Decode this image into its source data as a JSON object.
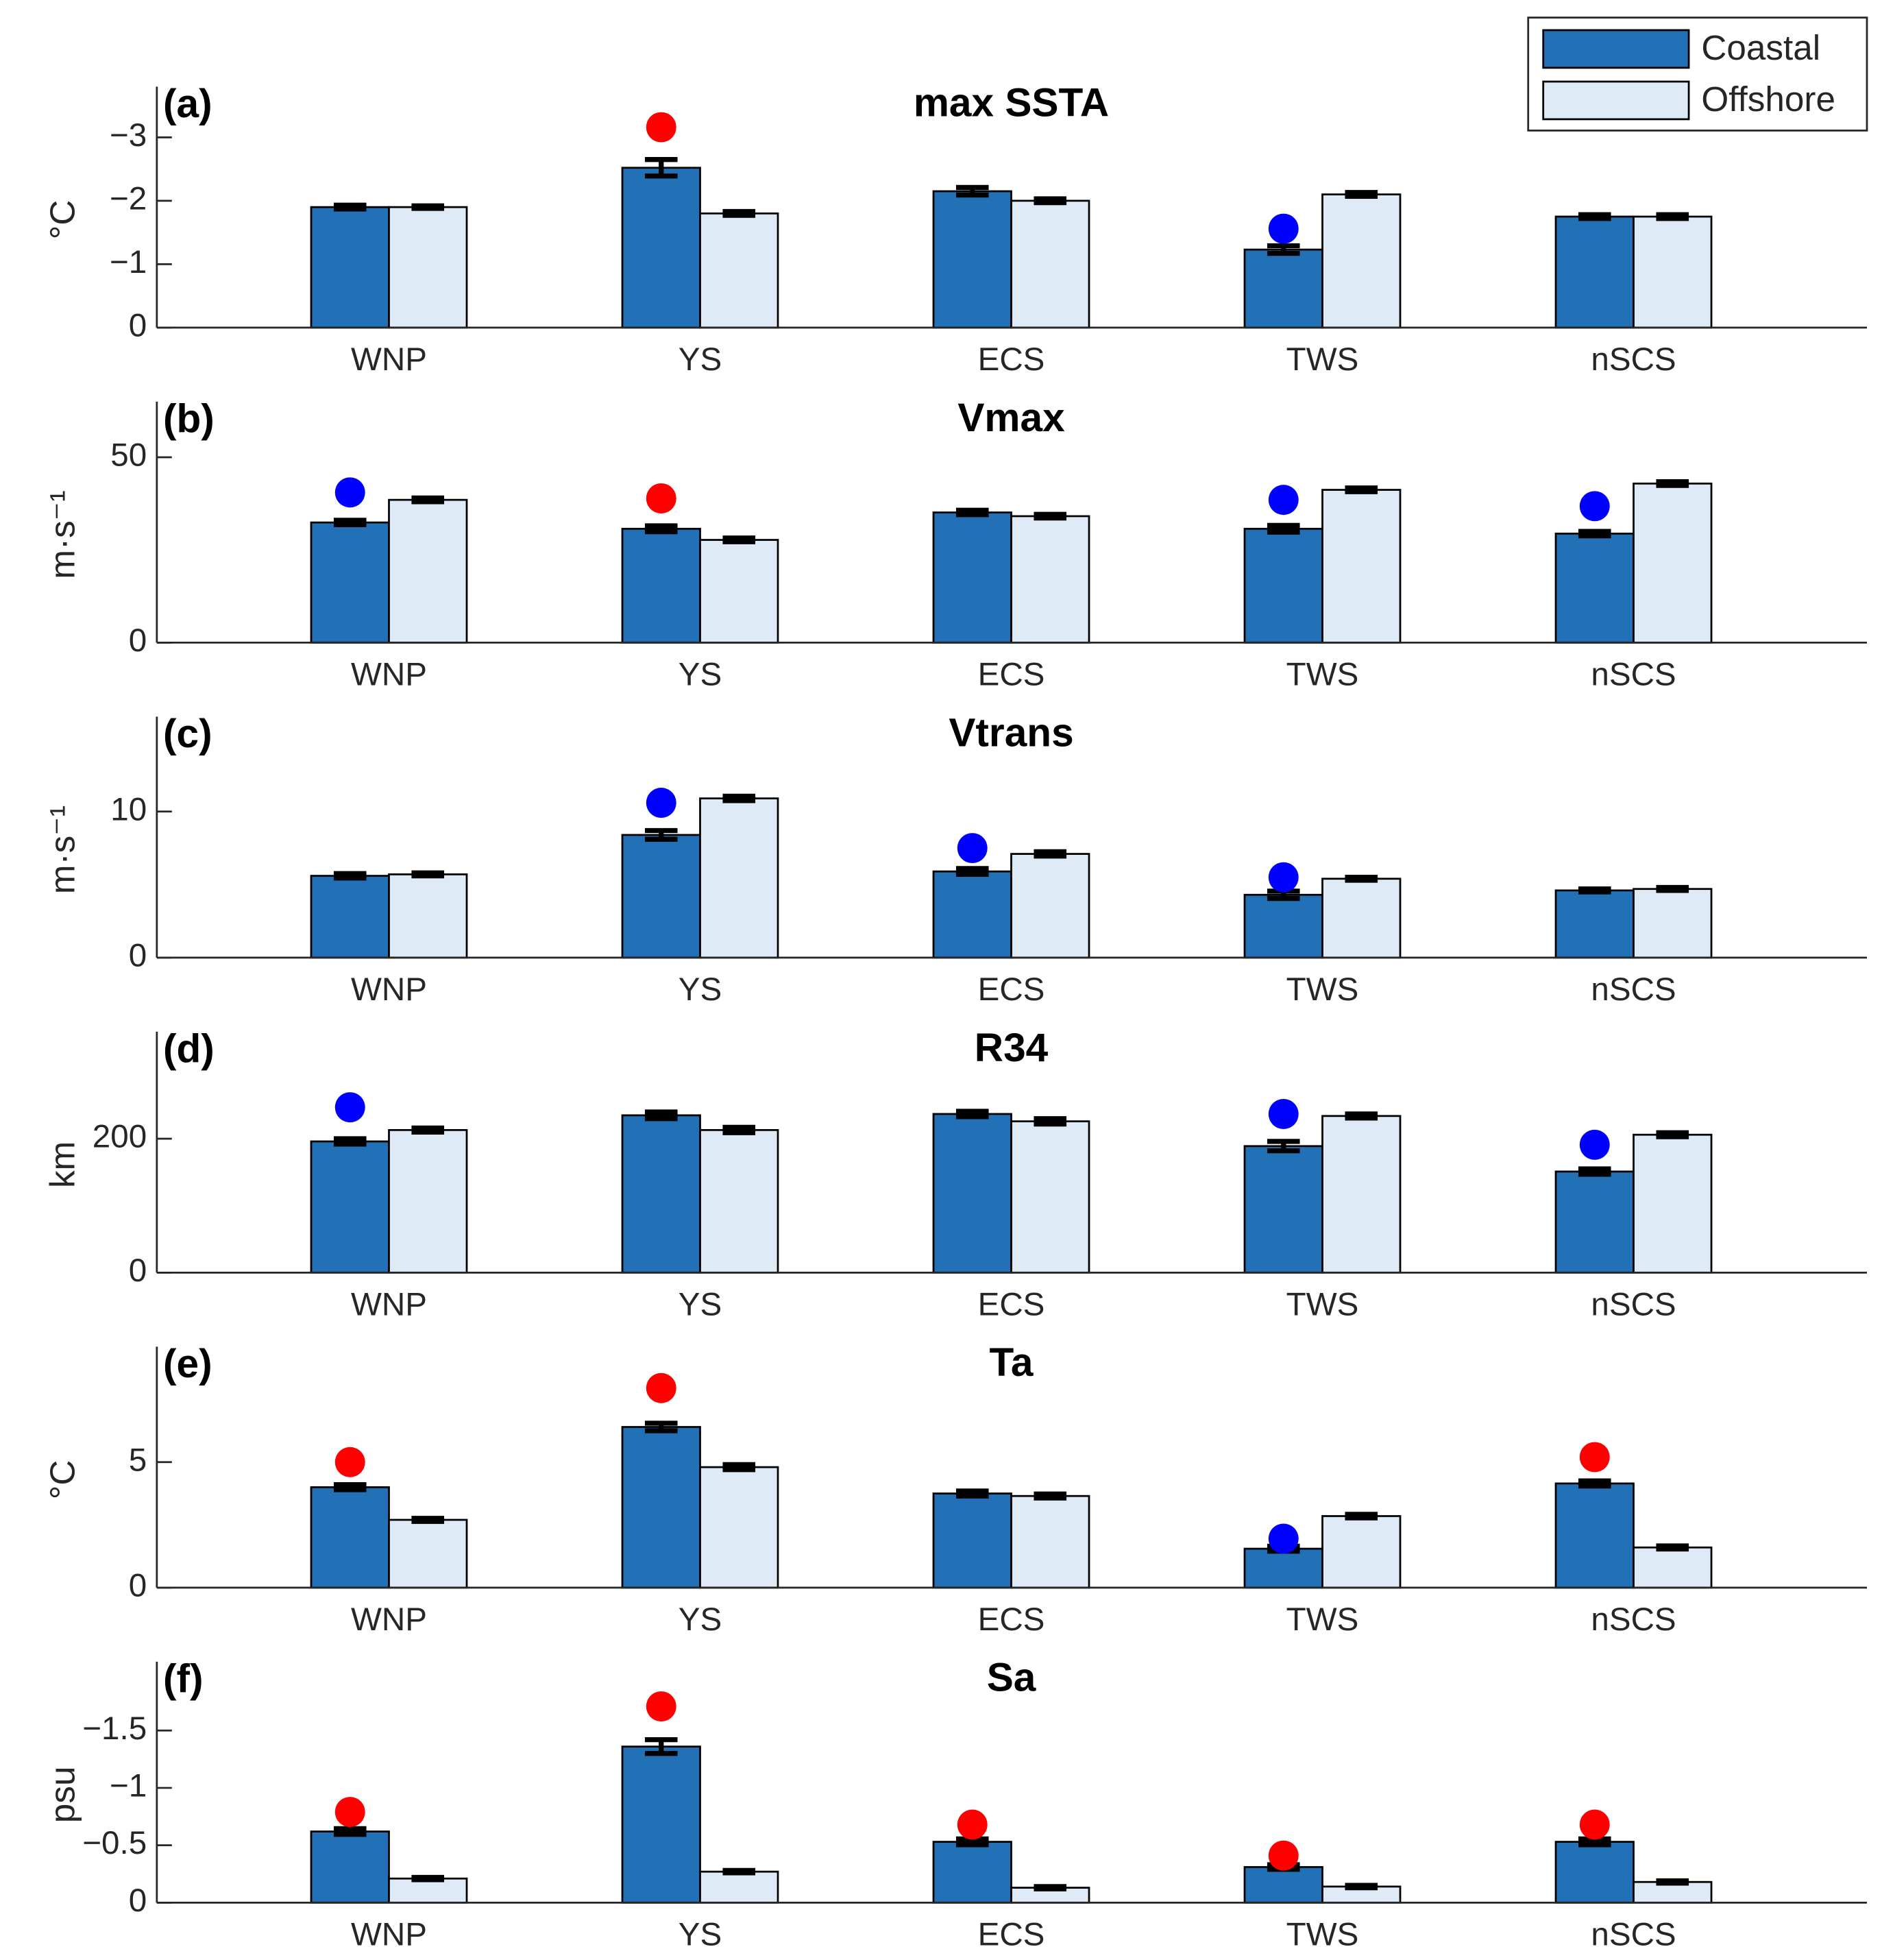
{
  "chart_data": [
    {
      "type": "bar",
      "title": "max SSTA",
      "panel_label": "(a)",
      "ylabel": "°C",
      "categories": [
        "WNP",
        "YS",
        "ECS",
        "TWS",
        "nSCS"
      ],
      "series": [
        {
          "name": "Coastal",
          "color": "#2270b5",
          "values": [
            -1.9,
            -2.52,
            -2.15,
            -1.23,
            -1.75
          ],
          "errors": [
            0.03,
            0.13,
            0.06,
            0.06,
            0.03
          ]
        },
        {
          "name": "Offshore",
          "color": "#deebf7",
          "values": [
            -1.9,
            -1.8,
            -2.0,
            -2.1,
            -1.75
          ],
          "errors": [
            0.02,
            0.03,
            0.03,
            0.03,
            0.03
          ]
        }
      ],
      "markers": {
        "values": [
          null,
          -3.16,
          null,
          -1.56,
          null
        ],
        "colors": [
          null,
          "#ff0000",
          null,
          "#0000ff",
          null
        ]
      },
      "ylim": [
        0,
        -3.8
      ],
      "yticks": [
        0,
        {
          "value": -1,
          "label": "−1"
        },
        {
          "value": -2,
          "label": "−2"
        },
        {
          "value": -3,
          "label": "−3"
        }
      ]
    },
    {
      "type": "bar",
      "title": "Vmax",
      "panel_label": "(b)",
      "ylabel": "m·s⁻¹",
      "categories": [
        "WNP",
        "YS",
        "ECS",
        "TWS",
        "nSCS"
      ],
      "series": [
        {
          "color": "#2270b5",
          "values": [
            32.4,
            30.7,
            35.1,
            30.7,
            29.4
          ],
          "errors": [
            0.6,
            0.8,
            0.6,
            0.9,
            0.6
          ]
        },
        {
          "color": "#deebf7",
          "values": [
            38.5,
            27.7,
            34.1,
            41.2,
            42.9
          ],
          "errors": [
            0.5,
            0.5,
            0.5,
            0.5,
            0.5
          ]
        }
      ],
      "markers": {
        "values": [
          40.5,
          38.9,
          null,
          38.5,
          36.8
        ],
        "colors": [
          "#0000ff",
          "#ff0000",
          null,
          "#0000ff",
          "#0000ff"
        ]
      },
      "ylim": [
        0,
        65
      ],
      "yticks": [
        0,
        50
      ]
    },
    {
      "type": "bar",
      "title": "Vtrans",
      "panel_label": "(c)",
      "ylabel": "m·s⁻¹",
      "categories": [
        "WNP",
        "YS",
        "ECS",
        "TWS",
        "nSCS"
      ],
      "series": [
        {
          "color": "#2270b5",
          "values": [
            5.6,
            8.4,
            5.9,
            4.3,
            4.6
          ],
          "errors": [
            0.15,
            0.3,
            0.2,
            0.25,
            0.1
          ]
        },
        {
          "color": "#deebf7",
          "values": [
            5.7,
            10.9,
            7.1,
            5.4,
            4.7
          ],
          "errors": [
            0.1,
            0.15,
            0.15,
            0.1,
            0.1
          ]
        }
      ],
      "markers": {
        "values": [
          null,
          10.6,
          7.5,
          5.5,
          null
        ],
        "colors": [
          null,
          "#0000ff",
          "#0000ff",
          "#0000ff",
          null
        ]
      },
      "ylim": [
        0,
        16.5
      ],
      "yticks": [
        0,
        10
      ]
    },
    {
      "type": "bar",
      "title": "R34",
      "panel_label": "(d)",
      "ylabel": "km",
      "categories": [
        "WNP",
        "YS",
        "ECS",
        "TWS",
        "nSCS"
      ],
      "series": [
        {
          "color": "#2270b5",
          "values": [
            196,
            235,
            237,
            189,
            151
          ],
          "errors": [
            4,
            5,
            4,
            7,
            4
          ]
        },
        {
          "color": "#deebf7",
          "values": [
            213,
            213,
            226,
            234,
            206
          ],
          "errors": [
            3,
            4,
            4,
            3,
            3
          ]
        }
      ],
      "markers": {
        "values": [
          247,
          null,
          null,
          237,
          191
        ],
        "colors": [
          "#0000ff",
          null,
          null,
          "#0000ff",
          "#0000ff"
        ]
      },
      "ylim": [
        0,
        360
      ],
      "yticks": [
        0,
        200
      ]
    },
    {
      "type": "bar",
      "title": "Ta",
      "panel_label": "(e)",
      "ylabel": "°C",
      "categories": [
        "WNP",
        "YS",
        "ECS",
        "TWS",
        "nSCS"
      ],
      "series": [
        {
          "color": "#2270b5",
          "values": [
            4.0,
            6.4,
            3.75,
            1.55,
            4.15
          ],
          "errors": [
            0.1,
            0.15,
            0.1,
            0.1,
            0.1
          ]
        },
        {
          "color": "#deebf7",
          "values": [
            2.7,
            4.8,
            3.65,
            2.85,
            1.6
          ],
          "errors": [
            0.06,
            0.1,
            0.08,
            0.07,
            0.06
          ]
        }
      ],
      "markers": {
        "values": [
          5.0,
          7.95,
          null,
          1.95,
          5.2
        ],
        "colors": [
          "#ff0000",
          "#ff0000",
          null,
          "#0000ff",
          "#ff0000"
        ]
      },
      "ylim": [
        0,
        9.6
      ],
      "yticks": [
        0,
        5
      ]
    },
    {
      "type": "bar",
      "title": "Sa",
      "panel_label": "(f)",
      "ylabel": "psu",
      "categories": [
        "WNP",
        "YS",
        "ECS",
        "TWS",
        "nSCS"
      ],
      "series": [
        {
          "color": "#2270b5",
          "values": [
            -0.62,
            -1.36,
            -0.53,
            -0.31,
            -0.53
          ],
          "errors": [
            0.025,
            0.06,
            0.025,
            0.02,
            0.025
          ]
        },
        {
          "color": "#deebf7",
          "values": [
            -0.21,
            -0.27,
            -0.13,
            -0.14,
            -0.18
          ],
          "errors": [
            0.01,
            0.01,
            0.01,
            0.01,
            0.01
          ]
        }
      ],
      "markers": {
        "values": [
          -0.79,
          -1.71,
          -0.68,
          -0.41,
          -0.68
        ],
        "colors": [
          "#ff0000",
          "#ff0000",
          "#ff0000",
          "#ff0000",
          "#ff0000"
        ]
      },
      "ylim": [
        0,
        -2.1
      ],
      "yticks": [
        0,
        {
          "value": -0.5,
          "label": "−0.5"
        },
        {
          "value": -1,
          "label": "−1"
        },
        {
          "value": -1.5,
          "label": "−1.5"
        }
      ]
    }
  ],
  "legend": "northeast"
}
